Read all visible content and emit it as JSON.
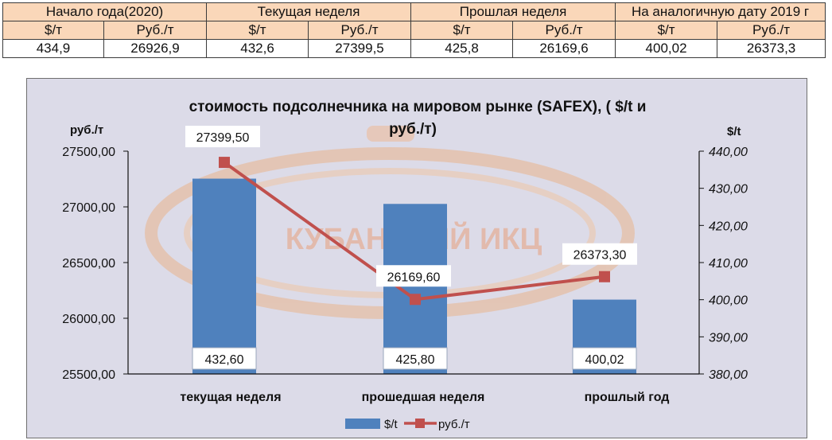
{
  "table": {
    "groups": [
      "Начало года(2020)",
      "Текущая неделя",
      "Прошлая неделя",
      "На аналогичную дату 2019 г"
    ],
    "subheaders": [
      "$/т",
      "Руб./т",
      "$/т",
      "Руб./т",
      "$/т",
      "Руб./т",
      "$/т",
      "Руб./т"
    ],
    "values": [
      "434,9",
      "26926,9",
      "432,6",
      "27399,5",
      "425,8",
      "26169,6",
      "400,02",
      "26373,3"
    ]
  },
  "watermark": "КУБАНСКИЙ ИКЦ",
  "chart_data": {
    "type": "bar",
    "title_line1": "стоимость подсолнечника на мировом рынке (SAFEX), ( $/t и",
    "title_line2": "руб./т)",
    "left_axis_label": "руб./т",
    "right_axis_label": "$/t",
    "categories": [
      "текущая  неделя",
      "прошедшая неделя",
      "прошлый  год"
    ],
    "bar_series": {
      "name": "$/t",
      "values": [
        432.6,
        425.8,
        400.02
      ],
      "labels": [
        "432,60",
        "425,80",
        "400,02"
      ],
      "color": "#4f81bd"
    },
    "line_series": {
      "name": "руб./т",
      "values": [
        27399.5,
        26169.6,
        26373.3
      ],
      "labels": [
        "27399,50",
        "26169,60",
        "26373,30"
      ],
      "color": "#c0504d"
    },
    "left_axis": {
      "min": 25500,
      "max": 27500,
      "ticks": [
        "25500,00",
        "26000,00",
        "26500,00",
        "27000,00",
        "27500,00"
      ]
    },
    "right_axis": {
      "min": 380,
      "max": 440,
      "ticks": [
        "380,00",
        "390,00",
        "400,00",
        "410,00",
        "420,00",
        "430,00",
        "440,00"
      ]
    },
    "legend_position": "bottom",
    "colors": {
      "plot_background": "#dcdbe8",
      "frame_border": "#6f6f6f"
    }
  }
}
